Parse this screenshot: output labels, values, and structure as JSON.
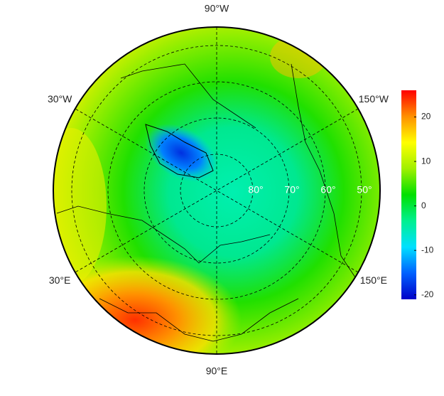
{
  "map": {
    "longitude_labels": [
      {
        "value": -90,
        "label": "90°W"
      },
      {
        "value": -30,
        "label": "30°W"
      },
      {
        "value": -150,
        "label": "150°W"
      },
      {
        "value": 30,
        "label": "30°E"
      },
      {
        "value": 150,
        "label": "150°E"
      },
      {
        "value": 90,
        "label": "90°E"
      }
    ],
    "latitude_labels": [
      {
        "value": 80,
        "label": "80°"
      },
      {
        "value": 70,
        "label": "70°"
      },
      {
        "value": 60,
        "label": "60°"
      },
      {
        "value": 50,
        "label": "50°"
      }
    ]
  },
  "colorbar": {
    "lim": [
      -21,
      26
    ],
    "ticks": [
      20,
      10,
      0,
      -10,
      -20
    ],
    "colors": [
      "#0000c8",
      "#0060ff",
      "#00e0ff",
      "#00f090",
      "#00e000",
      "#a0f000",
      "#ffff00",
      "#ff9000",
      "#ff0000"
    ]
  }
}
